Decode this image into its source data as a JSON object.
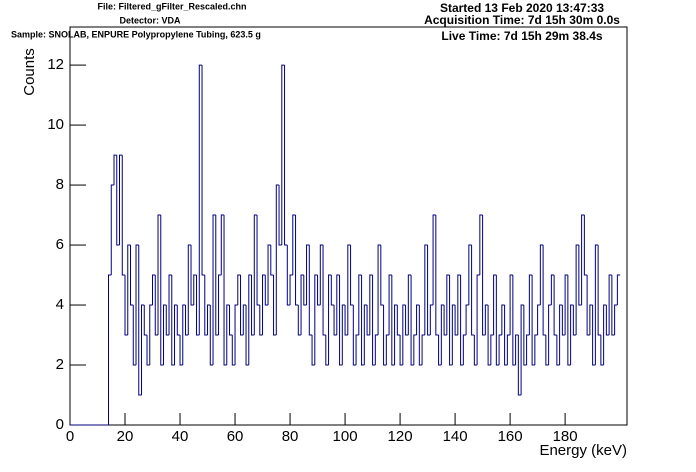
{
  "chart_data": {
    "type": "histogram",
    "header_left": [
      "File: Filtered_gFilter_Rescaled.chn",
      "Detector: VDA",
      "Sample: SNOLAB, ENPURE Polypropylene Tubing, 623.5 g"
    ],
    "header_right": [
      "Started 13 Feb 2020 13:47:33",
      "Acquisition Time: 7d 15h 30m 0.0s",
      "Live Time: 7d 15h 29m 38.4s"
    ],
    "xlabel": "Energy (keV)",
    "ylabel": "Counts",
    "color": "#000080",
    "xlim": [
      0,
      202.5
    ],
    "ylim": [
      0,
      13.27
    ],
    "xticks": [
      0,
      20,
      40,
      60,
      80,
      100,
      120,
      140,
      160,
      180
    ],
    "yticks": [
      0,
      2,
      4,
      6,
      8,
      10,
      12
    ],
    "bins": [
      0,
      1,
      2,
      3,
      4,
      5,
      6,
      7,
      8,
      9,
      10,
      11,
      12,
      13,
      14,
      15,
      16,
      17,
      18,
      19,
      20,
      21,
      22,
      23,
      24,
      25,
      26,
      27,
      28,
      29,
      30,
      31,
      32,
      33,
      34,
      35,
      36,
      37,
      38,
      39,
      40,
      41,
      42,
      43,
      44,
      45,
      46,
      47,
      48,
      49,
      50,
      51,
      52,
      53,
      54,
      55,
      56,
      57,
      58,
      59,
      60,
      61,
      62,
      63,
      64,
      65,
      66,
      67,
      68,
      69,
      70,
      71,
      72,
      73,
      74,
      75,
      76,
      77,
      78,
      79,
      80,
      81,
      82,
      83,
      84,
      85,
      86,
      87,
      88,
      89,
      90,
      91,
      92,
      93,
      94,
      95,
      96,
      97,
      98,
      99,
      100,
      101,
      102,
      103,
      104,
      105,
      106,
      107,
      108,
      109,
      110,
      111,
      112,
      113,
      114,
      115,
      116,
      117,
      118,
      119,
      120,
      121,
      122,
      123,
      124,
      125,
      126,
      127,
      128,
      129,
      130,
      131,
      132,
      133,
      134,
      135,
      136,
      137,
      138,
      139,
      140,
      141,
      142,
      143,
      144,
      145,
      146,
      147,
      148,
      149,
      150,
      151,
      152,
      153,
      154,
      155,
      156,
      157,
      158,
      159,
      160,
      161,
      162,
      163,
      164,
      165,
      166,
      167,
      168,
      169,
      170,
      171,
      172,
      173,
      174,
      175,
      176,
      177,
      178,
      179,
      180,
      181,
      182,
      183,
      184,
      185,
      186,
      187,
      188,
      189,
      190,
      191,
      192,
      193,
      194,
      195,
      196,
      197,
      198,
      199,
      200
    ],
    "values": [
      0,
      0,
      0,
      0,
      0,
      0,
      0,
      0,
      0,
      0,
      0,
      0,
      0,
      0,
      5,
      8,
      9,
      6,
      9,
      5,
      3,
      6,
      4,
      2,
      6,
      1,
      4,
      3,
      2,
      4,
      5,
      3,
      7,
      2,
      4,
      3,
      5,
      2,
      4,
      3,
      2,
      4,
      3,
      6,
      4,
      5,
      3,
      12,
      5,
      3,
      4,
      2,
      7,
      3,
      5,
      7,
      2,
      4,
      3,
      2,
      4,
      5,
      3,
      4,
      2,
      5,
      3,
      7,
      4,
      3,
      5,
      4,
      6,
      5,
      3,
      8,
      6,
      12,
      6,
      4,
      5,
      7,
      4,
      3,
      5,
      4,
      6,
      3,
      2,
      5,
      4,
      6,
      3,
      2,
      5,
      4,
      3,
      5,
      2,
      4,
      3,
      6,
      4,
      2,
      3,
      5,
      2,
      4,
      3,
      5,
      2,
      3,
      6,
      4,
      2,
      3,
      5,
      2,
      4,
      3,
      2,
      4,
      3,
      5,
      2,
      3,
      4,
      2,
      3,
      6,
      3,
      4,
      7,
      3,
      2,
      4,
      3,
      5,
      2,
      4,
      3,
      5,
      2,
      3,
      4,
      6,
      3,
      2,
      5,
      7,
      3,
      4,
      2,
      3,
      5,
      2,
      3,
      4,
      2,
      3,
      5,
      2,
      3,
      1,
      4,
      2,
      3,
      5,
      2,
      3,
      4,
      6,
      3,
      2,
      4,
      5,
      3,
      2,
      4,
      3,
      5,
      2,
      4,
      3,
      6,
      4,
      7,
      5,
      3,
      4,
      2,
      6,
      3,
      2,
      4,
      3,
      5,
      3,
      4,
      5
    ]
  }
}
